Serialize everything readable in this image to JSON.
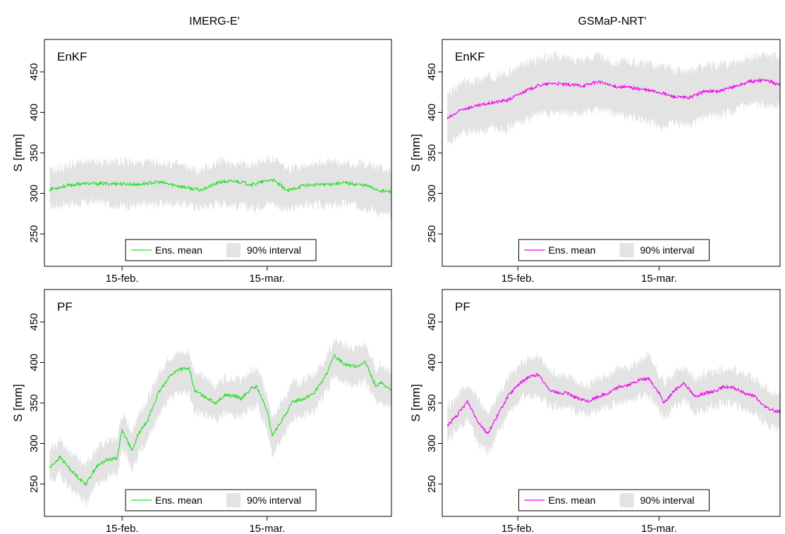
{
  "column_titles": [
    "IMERG-E'",
    "GSMaP-NRT'"
  ],
  "colors": {
    "imerg_line": "#22dd22",
    "gsmap_line": "#ee00ee",
    "band": "#e3e3e3",
    "axis": "#000000"
  },
  "legend": {
    "mean_label": "Ens. mean",
    "band_label": "90% interval"
  },
  "chart_data": [
    {
      "type": "line",
      "panel_label": "EnKF",
      "product": "IMERG-E'",
      "ylabel": "S [mm]",
      "xticks": [
        "15-feb.",
        "15-mar."
      ],
      "xtick_days": [
        15,
        43
      ],
      "xlim": [
        0,
        67
      ],
      "ylim": [
        210,
        490
      ],
      "yticks": [
        250,
        300,
        350,
        400,
        450
      ],
      "series": [
        {
          "name": "Ens. mean",
          "x": [
            1,
            4,
            7,
            10,
            14,
            18,
            22,
            26,
            30,
            34,
            37,
            40,
            44,
            47,
            50,
            54,
            58,
            62,
            65,
            67
          ],
          "values": [
            305,
            309,
            312,
            312,
            312,
            311,
            314,
            309,
            304,
            314,
            315,
            311,
            317,
            303,
            310,
            311,
            313,
            310,
            303,
            302
          ]
        },
        {
          "name": "90% interval",
          "x": [
            1,
            4,
            7,
            10,
            14,
            18,
            22,
            26,
            30,
            34,
            37,
            40,
            44,
            47,
            50,
            54,
            58,
            62,
            65,
            67
          ],
          "lower": [
            283,
            287,
            287,
            290,
            285,
            285,
            287,
            288,
            282,
            289,
            285,
            282,
            289,
            278,
            287,
            284,
            287,
            283,
            275,
            271
          ],
          "upper": [
            327,
            333,
            339,
            337,
            340,
            337,
            338,
            335,
            327,
            340,
            337,
            336,
            343,
            329,
            336,
            339,
            337,
            337,
            331,
            327
          ]
        }
      ]
    },
    {
      "type": "line",
      "panel_label": "EnKF",
      "product": "GSMaP-NRT'",
      "ylabel": "S [mm]",
      "xticks": [
        "15-feb.",
        "15-mar."
      ],
      "xtick_days": [
        15,
        43
      ],
      "xlim": [
        0,
        67
      ],
      "ylim": [
        210,
        490
      ],
      "yticks": [
        250,
        300,
        350,
        400,
        450
      ],
      "series": [
        {
          "name": "Ens. mean",
          "x": [
            1,
            4,
            7,
            10,
            13,
            16,
            19,
            22,
            25,
            28,
            31,
            34,
            37,
            40,
            43,
            46,
            49,
            52,
            55,
            58,
            61,
            64,
            67
          ],
          "values": [
            392,
            404,
            408,
            412,
            415,
            425,
            433,
            436,
            434,
            433,
            438,
            432,
            431,
            428,
            425,
            419,
            418,
            426,
            426,
            432,
            438,
            440,
            434
          ]
        },
        {
          "name": "90% interval",
          "x": [
            1,
            4,
            7,
            10,
            13,
            16,
            19,
            22,
            25,
            28,
            31,
            34,
            37,
            40,
            43,
            46,
            49,
            52,
            55,
            58,
            61,
            64,
            67
          ],
          "lower": [
            358,
            375,
            376,
            380,
            380,
            390,
            398,
            400,
            398,
            398,
            405,
            398,
            395,
            390,
            382,
            385,
            385,
            395,
            397,
            402,
            408,
            410,
            408
          ]
        },
        {
          "name": "90% interval upper",
          "x": [
            1,
            4,
            7,
            10,
            13,
            16,
            19,
            22,
            25,
            28,
            31,
            34,
            37,
            40,
            43,
            46,
            49,
            52,
            55,
            58,
            61,
            64,
            67
          ],
          "upper": [
            420,
            437,
            440,
            445,
            448,
            458,
            466,
            470,
            467,
            466,
            470,
            462,
            463,
            460,
            458,
            452,
            450,
            458,
            458,
            462,
            468,
            472,
            466
          ]
        }
      ]
    },
    {
      "type": "line",
      "panel_label": "PF",
      "product": "IMERG-E'",
      "ylabel": "S [mm]",
      "xticks": [
        "15-feb.",
        "15-mar."
      ],
      "xtick_days": [
        15,
        43
      ],
      "xlim": [
        0,
        67
      ],
      "ylim": [
        210,
        490
      ],
      "yticks": [
        250,
        300,
        350,
        400,
        450
      ],
      "series": [
        {
          "name": "Ens. mean",
          "x": [
            1,
            3,
            5,
            7,
            8,
            10,
            12,
            14,
            15,
            17,
            18,
            20,
            22,
            24,
            26,
            28,
            29,
            31,
            33,
            35,
            37,
            38,
            40,
            41,
            43,
            44,
            46,
            48,
            50,
            52,
            54,
            56,
            58,
            60,
            62,
            64,
            65,
            67
          ],
          "values": [
            270,
            283,
            268,
            255,
            250,
            271,
            280,
            282,
            317,
            290,
            310,
            330,
            362,
            382,
            392,
            392,
            365,
            358,
            350,
            360,
            358,
            355,
            368,
            370,
            340,
            310,
            330,
            352,
            355,
            362,
            380,
            408,
            398,
            395,
            400,
            370,
            375,
            365
          ]
        },
        {
          "name": "90% interval",
          "x": [
            1,
            3,
            5,
            7,
            8,
            10,
            12,
            14,
            15,
            17,
            18,
            20,
            22,
            24,
            26,
            28,
            29,
            31,
            33,
            35,
            37,
            38,
            40,
            41,
            43,
            44,
            46,
            48,
            50,
            52,
            54,
            56,
            58,
            60,
            62,
            64,
            65,
            67
          ],
          "lower": [
            252,
            262,
            245,
            232,
            225,
            250,
            258,
            262,
            295,
            268,
            285,
            305,
            335,
            355,
            362,
            362,
            340,
            335,
            328,
            337,
            335,
            333,
            345,
            347,
            315,
            288,
            308,
            330,
            333,
            340,
            358,
            385,
            375,
            372,
            377,
            350,
            352,
            345
          ]
        },
        {
          "name": "90% interval upper",
          "x": [
            1,
            3,
            5,
            7,
            8,
            10,
            12,
            14,
            15,
            17,
            18,
            20,
            22,
            24,
            26,
            28,
            29,
            31,
            33,
            35,
            37,
            38,
            40,
            41,
            43,
            44,
            46,
            48,
            50,
            52,
            54,
            56,
            58,
            60,
            62,
            64,
            65,
            67
          ],
          "upper": [
            290,
            303,
            290,
            278,
            275,
            293,
            302,
            305,
            335,
            315,
            335,
            355,
            385,
            405,
            412,
            412,
            388,
            380,
            372,
            382,
            380,
            378,
            390,
            392,
            362,
            335,
            352,
            375,
            378,
            385,
            402,
            428,
            420,
            417,
            422,
            392,
            397,
            388
          ]
        }
      ]
    },
    {
      "type": "line",
      "panel_label": "PF",
      "product": "GSMaP-NRT'",
      "ylabel": "S [mm]",
      "xticks": [
        "15-feb.",
        "15-mar."
      ],
      "xtick_days": [
        15,
        43
      ],
      "xlim": [
        0,
        67
      ],
      "ylim": [
        210,
        490
      ],
      "yticks": [
        250,
        300,
        350,
        400,
        450
      ],
      "series": [
        {
          "name": "Ens. mean",
          "x": [
            1,
            3,
            5,
            7,
            9,
            11,
            13,
            15,
            17,
            19,
            21,
            23,
            25,
            27,
            29,
            31,
            33,
            35,
            37,
            39,
            41,
            43,
            44,
            46,
            48,
            50,
            52,
            54,
            56,
            58,
            60,
            62,
            64,
            66,
            67
          ],
          "values": [
            322,
            335,
            352,
            328,
            312,
            335,
            358,
            372,
            382,
            385,
            368,
            362,
            362,
            355,
            352,
            358,
            362,
            370,
            372,
            378,
            380,
            362,
            350,
            365,
            375,
            358,
            362,
            365,
            370,
            368,
            362,
            358,
            345,
            340,
            340
          ]
        },
        {
          "name": "90% interval",
          "x": [
            1,
            3,
            5,
            7,
            9,
            11,
            13,
            15,
            17,
            19,
            21,
            23,
            25,
            27,
            29,
            31,
            33,
            35,
            37,
            39,
            41,
            43,
            44,
            46,
            48,
            50,
            52,
            54,
            56,
            58,
            60,
            62,
            64,
            66,
            67
          ],
          "lower": [
            305,
            318,
            330,
            302,
            288,
            312,
            335,
            350,
            360,
            362,
            348,
            345,
            345,
            338,
            335,
            340,
            345,
            352,
            352,
            358,
            360,
            342,
            330,
            345,
            352,
            338,
            342,
            345,
            350,
            348,
            342,
            338,
            325,
            320,
            318
          ]
        },
        {
          "name": "90% interval upper",
          "x": [
            1,
            3,
            5,
            7,
            9,
            11,
            13,
            15,
            17,
            19,
            21,
            23,
            25,
            27,
            29,
            31,
            33,
            35,
            37,
            39,
            41,
            43,
            44,
            46,
            48,
            50,
            52,
            54,
            56,
            58,
            60,
            62,
            64,
            66,
            67
          ],
          "upper": [
            345,
            358,
            372,
            355,
            338,
            358,
            380,
            395,
            405,
            408,
            390,
            385,
            383,
            375,
            372,
            380,
            385,
            392,
            395,
            400,
            408,
            385,
            372,
            388,
            395,
            380,
            385,
            388,
            392,
            390,
            385,
            380,
            368,
            362,
            360
          ]
        }
      ]
    }
  ]
}
